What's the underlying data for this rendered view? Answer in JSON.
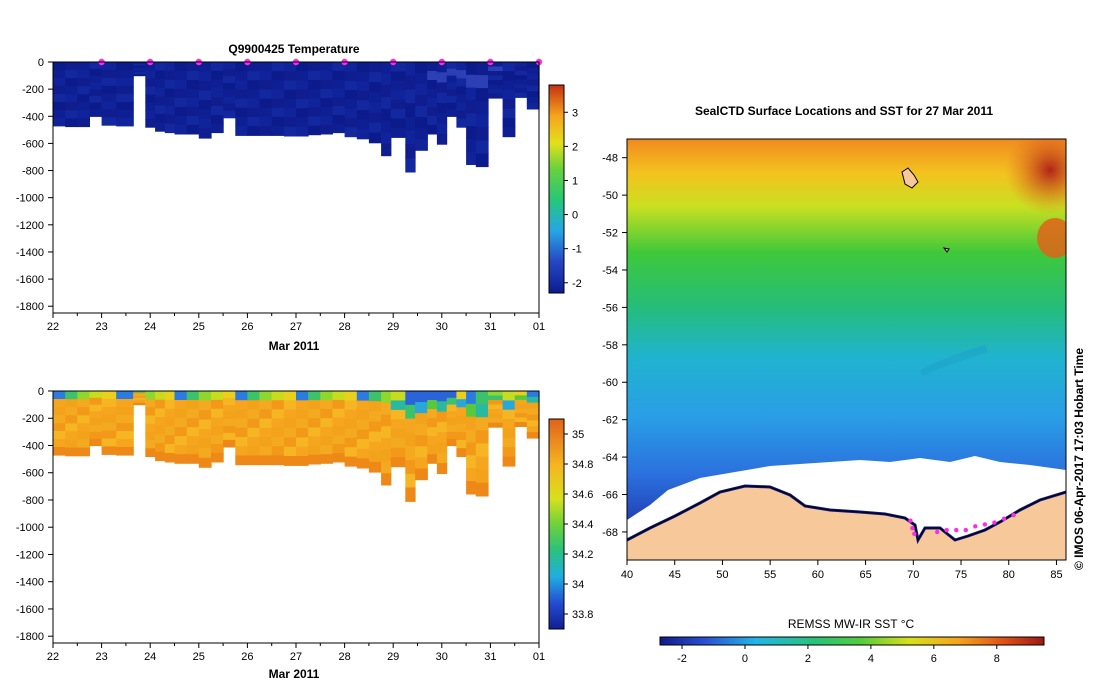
{
  "chart_data": [
    {
      "id": "temperature-section",
      "type": "heatmap",
      "title": "Q9900425  Temperature",
      "xlabel": "Mar 2011",
      "x_ticks": [
        "22",
        "23",
        "24",
        "25",
        "26",
        "27",
        "28",
        "29",
        "30",
        "31",
        "01"
      ],
      "y_ticks": [
        "0",
        "-200",
        "-400",
        "-600",
        "-800",
        "-1000",
        "-1200",
        "-1400",
        "-1600",
        "-1800"
      ],
      "ylim": [
        -1850,
        0
      ],
      "xlim": [
        22,
        32
      ],
      "colorbar": {
        "ticks": [
          "3",
          "2",
          "1",
          "0",
          "-1",
          "-2"
        ],
        "range": [
          -2.3,
          3.8
        ]
      },
      "profile_days": [
        22.0,
        22.25,
        22.5,
        22.75,
        23.0,
        23.3,
        23.65,
        23.9,
        24.1,
        24.3,
        24.5,
        24.75,
        25.0,
        25.25,
        25.5,
        25.75,
        26.0,
        26.25,
        26.5,
        26.75,
        27.0,
        27.25,
        27.5,
        27.75,
        28.0,
        28.25,
        28.5,
        28.75,
        28.95,
        29.25,
        29.45,
        29.7,
        29.9,
        30.1,
        30.3,
        30.5,
        30.7,
        30.95,
        31.25,
        31.5,
        31.75
      ],
      "profile_depths": [
        -470,
        -475,
        -475,
        -400,
        -465,
        -470,
        -100,
        -480,
        -510,
        -520,
        -530,
        -530,
        -560,
        -520,
        -410,
        -540,
        -540,
        -540,
        -540,
        -545,
        -545,
        -535,
        -530,
        -520,
        -550,
        -565,
        -595,
        -690,
        -555,
        -810,
        -650,
        -530,
        -605,
        -400,
        -480,
        -755,
        -770,
        -265,
        -550,
        -260,
        -345
      ],
      "markers": "magenta profile markers at surface every 24 h",
      "value_range": [
        -2.3,
        -1.2
      ]
    },
    {
      "id": "salinity-section",
      "type": "heatmap",
      "title": "",
      "xlabel": "Mar 2011",
      "x_ticks": [
        "22",
        "23",
        "24",
        "25",
        "26",
        "27",
        "28",
        "29",
        "30",
        "31",
        "01"
      ],
      "y_ticks": [
        "0",
        "-200",
        "-400",
        "-600",
        "-800",
        "-1000",
        "-1200",
        "-1400",
        "-1600",
        "-1800"
      ],
      "ylim": [
        -1850,
        0
      ],
      "xlim": [
        22,
        32
      ],
      "colorbar": {
        "ticks": [
          "35",
          "34.8",
          "34.6",
          "34.4",
          "34.2",
          "34",
          "33.8"
        ],
        "range": [
          33.7,
          35.1
        ]
      },
      "value_range": [
        33.8,
        34.75
      ]
    },
    {
      "id": "sst-map",
      "type": "heatmap",
      "title": "SealCTD Surface Locations and SST for 27 Mar 2011",
      "x_ticks": [
        "40",
        "45",
        "50",
        "55",
        "60",
        "65",
        "70",
        "75",
        "80",
        "85"
      ],
      "y_ticks": [
        "-48",
        "-50",
        "-52",
        "-54",
        "-56",
        "-58",
        "-60",
        "-62",
        "-64",
        "-66",
        "-68"
      ],
      "xlim": [
        40,
        86
      ],
      "ylim": [
        -69.5,
        -47
      ],
      "colorbar_label": "REMSS MW-IR SST °C",
      "colorbar": {
        "ticks": [
          "-2",
          "0",
          "2",
          "4",
          "6",
          "8"
        ],
        "range": [
          -2.7,
          9.5
        ]
      },
      "side_label": "© IMOS 06-Apr-2017 17:03 Hobart Time"
    }
  ],
  "colors": {
    "land": "#f7c99a",
    "ice": "#ffffff",
    "coast": "#000000",
    "marker": "#ff2be6"
  }
}
